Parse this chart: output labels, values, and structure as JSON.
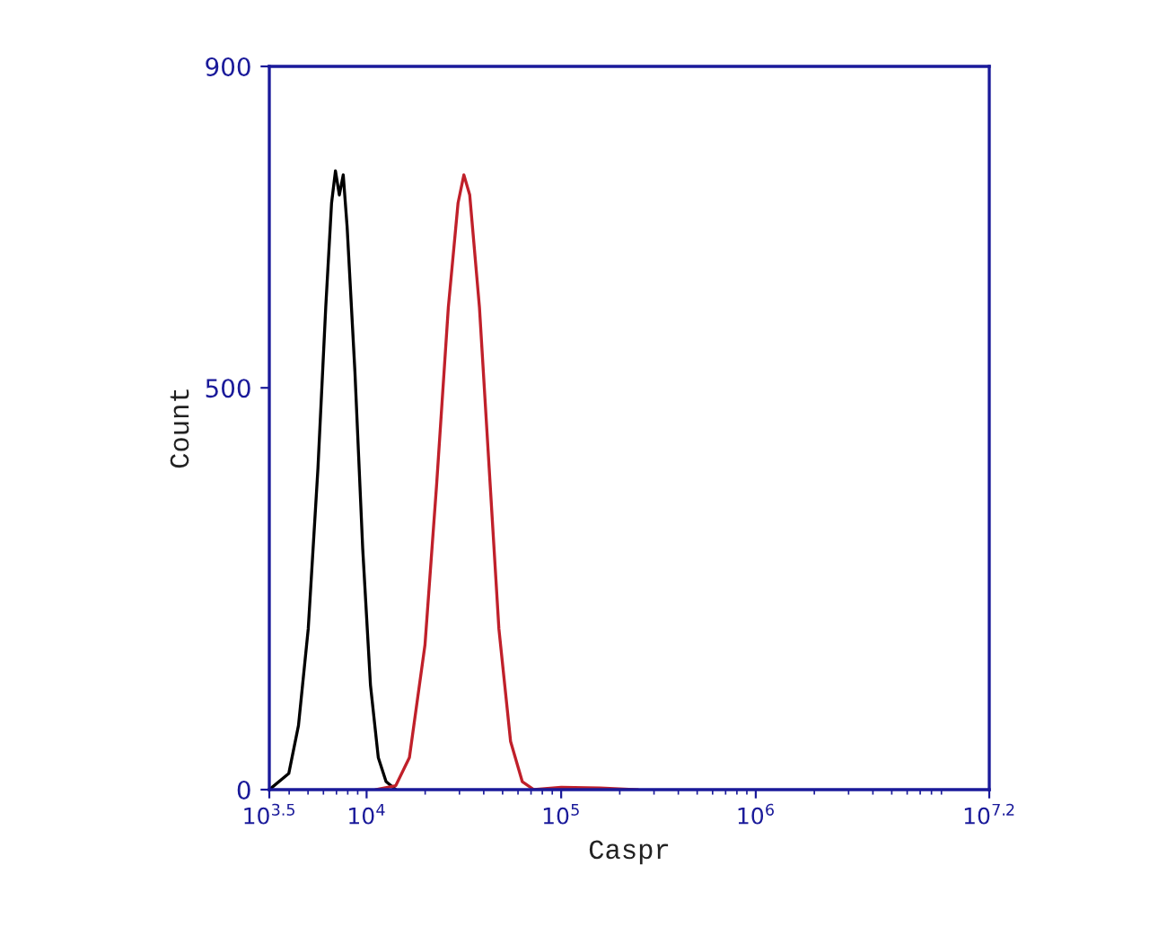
{
  "chart_data": {
    "type": "line",
    "xlabel": "Caspr",
    "ylabel": "Count",
    "log": "x",
    "grid": false,
    "xlim": [
      3162.28,
      15848932
    ],
    "ylim": [
      0,
      900
    ],
    "xticks": [
      {
        "value": 3162.28,
        "label": "10$^{3.5}$"
      },
      {
        "value": 10000,
        "label": "10$^{4}$"
      },
      {
        "value": 100000,
        "label": "10$^{5}$"
      },
      {
        "value": 1000000,
        "label": "10$^{6}$"
      },
      {
        "value": 15848932,
        "label": "10$^{7.2}$"
      }
    ],
    "yticks": [
      0,
      500,
      900
    ],
    "series": [
      {
        "color": "#000000",
        "x": [
          3163,
          3981,
          4467,
          5012,
          5623,
          6166,
          6607,
          6918,
          7244,
          7586,
          7943,
          8710,
          9550,
          10471,
          11482,
          12589,
          14125
        ],
        "values": [
          0,
          20,
          80,
          200,
          400,
          600,
          730,
          770,
          740,
          765,
          700,
          520,
          300,
          130,
          40,
          10,
          0
        ]
      },
      {
        "color": "#c0202a",
        "x": [
          11220,
          14125,
          16596,
          19953,
          22909,
          26303,
          29512,
          31623,
          33884,
          38019,
          42658,
          47863,
          54954,
          63096,
          72444,
          100000,
          158489,
          245471
        ],
        "values": [
          0,
          5,
          40,
          180,
          380,
          600,
          730,
          765,
          740,
          600,
          400,
          200,
          60,
          10,
          0,
          3,
          2,
          0
        ]
      }
    ]
  }
}
